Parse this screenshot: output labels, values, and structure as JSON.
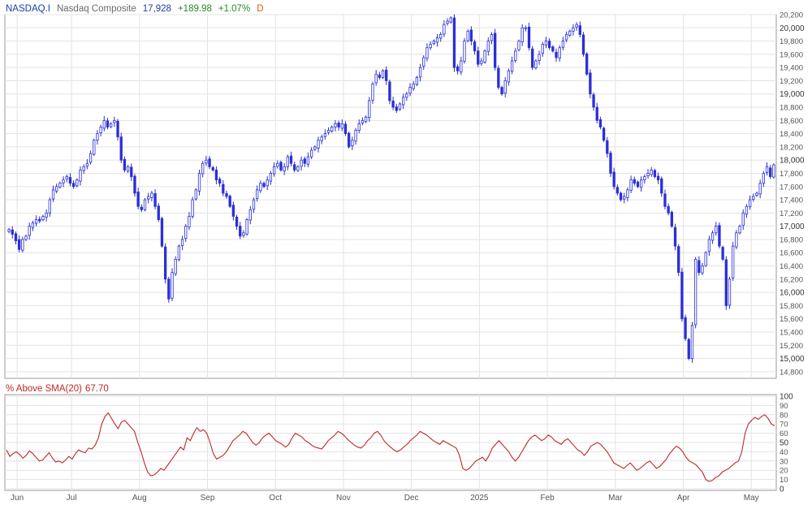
{
  "header": {
    "symbol": "NASDAQ.I",
    "name": "Nasdaq Composite",
    "last": "17,928",
    "change": "+189.98",
    "change_pct": "+1.07%",
    "period": "D"
  },
  "indicator": {
    "label": "% Above SMA(20)",
    "value": "67.70"
  },
  "colors": {
    "up": "#2a2fd6",
    "indicator": "#c0282a",
    "grid": "#e3e3e3",
    "symbol": "#1a3fa8",
    "last": "#1a3fa8",
    "change": "#228b22",
    "period": "#e05a00"
  },
  "chart_data": [
    {
      "type": "candlestick",
      "ylim": [
        14700,
        20200
      ],
      "y_ticks": [
        {
          "value": 20200,
          "label": "20,200",
          "bold": false
        },
        {
          "value": 20000,
          "label": "20,000",
          "bold": true
        },
        {
          "value": 19800,
          "label": "19,800",
          "bold": false
        },
        {
          "value": 19600,
          "label": "19,600",
          "bold": false
        },
        {
          "value": 19400,
          "label": "19,400",
          "bold": false
        },
        {
          "value": 19200,
          "label": "19,200",
          "bold": false
        },
        {
          "value": 19000,
          "label": "19,000",
          "bold": true
        },
        {
          "value": 18800,
          "label": "18,800",
          "bold": false
        },
        {
          "value": 18600,
          "label": "18,600",
          "bold": false
        },
        {
          "value": 18400,
          "label": "18,400",
          "bold": false
        },
        {
          "value": 18200,
          "label": "18,200",
          "bold": false
        },
        {
          "value": 18000,
          "label": "18,000",
          "bold": true
        },
        {
          "value": 17800,
          "label": "17,800",
          "bold": false
        },
        {
          "value": 17600,
          "label": "17,600",
          "bold": false
        },
        {
          "value": 17400,
          "label": "17,400",
          "bold": false
        },
        {
          "value": 17200,
          "label": "17,200",
          "bold": false
        },
        {
          "value": 17000,
          "label": "17,000",
          "bold": true
        },
        {
          "value": 16800,
          "label": "16,800",
          "bold": false
        },
        {
          "value": 16600,
          "label": "16,600",
          "bold": false
        },
        {
          "value": 16400,
          "label": "16,400",
          "bold": false
        },
        {
          "value": 16200,
          "label": "16,200",
          "bold": false
        },
        {
          "value": 16000,
          "label": "16,000",
          "bold": true
        },
        {
          "value": 15800,
          "label": "15,800",
          "bold": false
        },
        {
          "value": 15600,
          "label": "15,600",
          "bold": false
        },
        {
          "value": 15400,
          "label": "15,400",
          "bold": false
        },
        {
          "value": 15200,
          "label": "15,200",
          "bold": false
        },
        {
          "value": 15000,
          "label": "15,000",
          "bold": true
        },
        {
          "value": 14800,
          "label": "14,800",
          "bold": false
        }
      ],
      "closes": [
        [
          16950,
          16880,
          16780,
          16650,
          16800,
          16850
        ],
        [
          17000,
          17050,
          17100,
          17080,
          17150,
          17200,
          17400,
          17550,
          17600,
          17650
        ],
        [
          17700,
          17750,
          17650,
          17600,
          17700,
          17850,
          17900,
          17950,
          18100,
          18300
        ],
        [
          18400,
          18500,
          18600,
          18500,
          18550,
          18600,
          18350,
          18000,
          17850,
          17900
        ],
        [
          17750,
          17500,
          17300,
          17250,
          17400,
          17450,
          17500,
          17300,
          17100,
          16700
        ],
        [
          16200,
          15900,
          16300,
          16500,
          16700,
          16800,
          17000,
          17150,
          17400,
          17550
        ],
        [
          17800,
          17950,
          18000,
          17900,
          17850,
          17700,
          17650,
          17500,
          17450,
          17300
        ],
        [
          17150,
          17000,
          16850,
          16900,
          17100,
          17250,
          17400,
          17550,
          17650,
          17600
        ],
        [
          17700,
          17800,
          17900,
          17950,
          17850,
          17900,
          18050,
          17950,
          17850,
          17900
        ],
        [
          18000,
          17950,
          18050,
          18150,
          18200,
          18300,
          18350,
          18400,
          18450,
          18500
        ],
        [
          18550,
          18500,
          18550,
          18400,
          18200,
          18300,
          18450,
          18550,
          18600,
          18650
        ],
        [
          18900,
          19150,
          19300,
          19250,
          19350,
          19200,
          18900,
          18800,
          18750,
          18850
        ],
        [
          18950,
          19000,
          19100,
          19150,
          19250,
          19400,
          19550,
          19700,
          19750,
          19800
        ],
        [
          19850,
          19900,
          20050,
          20100,
          20150,
          19400,
          19350,
          19500,
          19800,
          19950
        ],
        [
          19800,
          19650,
          19450,
          19500,
          19650,
          19800,
          19900,
          19400,
          19100,
          19000
        ],
        [
          19200,
          19350,
          19500,
          19650,
          19800,
          20000,
          20000,
          19700,
          19400,
          19500
        ],
        [
          19600,
          19750,
          19800,
          19700,
          19650,
          19550,
          19700,
          19800,
          19900,
          19950
        ],
        [
          20000,
          20050,
          19900,
          19600,
          19300,
          19000,
          18800,
          18600,
          18500,
          18300
        ],
        [
          18100,
          17800,
          17600,
          17500,
          17400,
          17450,
          17550,
          17700,
          17650,
          17600
        ],
        [
          17700,
          17750,
          17800,
          17850,
          17750,
          17700,
          17500,
          17300,
          17200,
          17000
        ],
        [
          16700,
          16300,
          15600,
          15300,
          15000,
          15500,
          16500,
          16300,
          16400,
          16600
        ],
        [
          16800,
          16900,
          17000,
          16700,
          16500,
          15800,
          16200,
          16700,
          16900,
          17000
        ],
        [
          17200,
          17300,
          17400,
          17450,
          17500,
          17650,
          17800,
          17900,
          17750,
          17928
        ]
      ],
      "x_labels": [
        "Jun",
        "Jul",
        "Aug",
        "Sep",
        "Oct",
        "Nov",
        "Dec",
        "2025",
        "Feb",
        "Mar",
        "Apr",
        "May"
      ]
    },
    {
      "type": "line",
      "name": "% Above SMA(20)",
      "ylim": [
        0,
        100
      ],
      "y_ticks": [
        {
          "value": 100,
          "label": "100",
          "bold": true
        },
        {
          "value": 90,
          "label": "90",
          "bold": false
        },
        {
          "value": 80,
          "label": "80",
          "bold": false
        },
        {
          "value": 70,
          "label": "70",
          "bold": false
        },
        {
          "value": 60,
          "label": "60",
          "bold": false
        },
        {
          "value": 50,
          "label": "50",
          "bold": true
        },
        {
          "value": 40,
          "label": "40",
          "bold": false
        },
        {
          "value": 30,
          "label": "30",
          "bold": false
        },
        {
          "value": 20,
          "label": "20",
          "bold": false
        },
        {
          "value": 10,
          "label": "10",
          "bold": false
        },
        {
          "value": 0,
          "label": "0",
          "bold": true
        }
      ],
      "values": [
        42,
        35,
        38,
        40,
        37,
        33,
        36,
        41,
        38,
        34,
        30,
        31,
        35,
        39,
        33,
        29,
        30,
        28,
        31,
        35,
        32,
        38,
        42,
        40,
        39,
        44,
        43,
        47,
        55,
        70,
        78,
        82,
        76,
        70,
        65,
        72,
        74,
        70,
        66,
        62,
        50,
        40,
        28,
        18,
        14,
        15,
        18,
        22,
        20,
        25,
        30,
        35,
        40,
        45,
        42,
        55,
        52,
        60,
        66,
        62,
        64,
        60,
        50,
        38,
        32,
        34,
        36,
        40,
        46,
        52,
        55,
        58,
        62,
        60,
        55,
        50,
        47,
        50,
        55,
        58,
        60,
        56,
        52,
        50,
        48,
        45,
        48,
        55,
        60,
        58,
        56,
        52,
        50,
        47,
        45,
        44,
        43,
        47,
        52,
        55,
        58,
        62,
        60,
        57,
        53,
        50,
        47,
        45,
        44,
        47,
        52,
        55,
        60,
        62,
        58,
        52,
        48,
        45,
        42,
        40,
        42,
        45,
        48,
        52,
        55,
        58,
        62,
        60,
        58,
        55,
        52,
        50,
        48,
        52,
        50,
        48,
        46,
        44,
        36,
        22,
        20,
        22,
        26,
        30,
        32,
        34,
        30,
        36,
        44,
        48,
        52,
        48,
        44,
        40,
        34,
        30,
        34,
        40,
        46,
        52,
        56,
        58,
        55,
        52,
        54,
        58,
        56,
        52,
        50,
        48,
        52,
        54,
        50,
        46,
        42,
        40,
        36,
        40,
        46,
        48,
        50,
        48,
        44,
        40,
        34,
        28,
        26,
        24,
        22,
        25,
        28,
        24,
        20,
        22,
        25,
        28,
        30,
        26,
        22,
        24,
        28,
        32,
        38,
        42,
        46,
        44,
        40,
        34,
        30,
        28,
        26,
        22,
        18,
        10,
        8,
        9,
        12,
        14,
        18,
        20,
        22,
        25,
        28,
        30,
        40,
        60,
        70,
        74,
        77,
        75,
        78,
        80,
        76,
        70,
        68
      ],
      "x_labels": [
        "Jun",
        "Jul",
        "Aug",
        "Sep",
        "Oct",
        "Nov",
        "Dec",
        "2025",
        "Feb",
        "Mar",
        "Apr",
        "May"
      ]
    }
  ]
}
